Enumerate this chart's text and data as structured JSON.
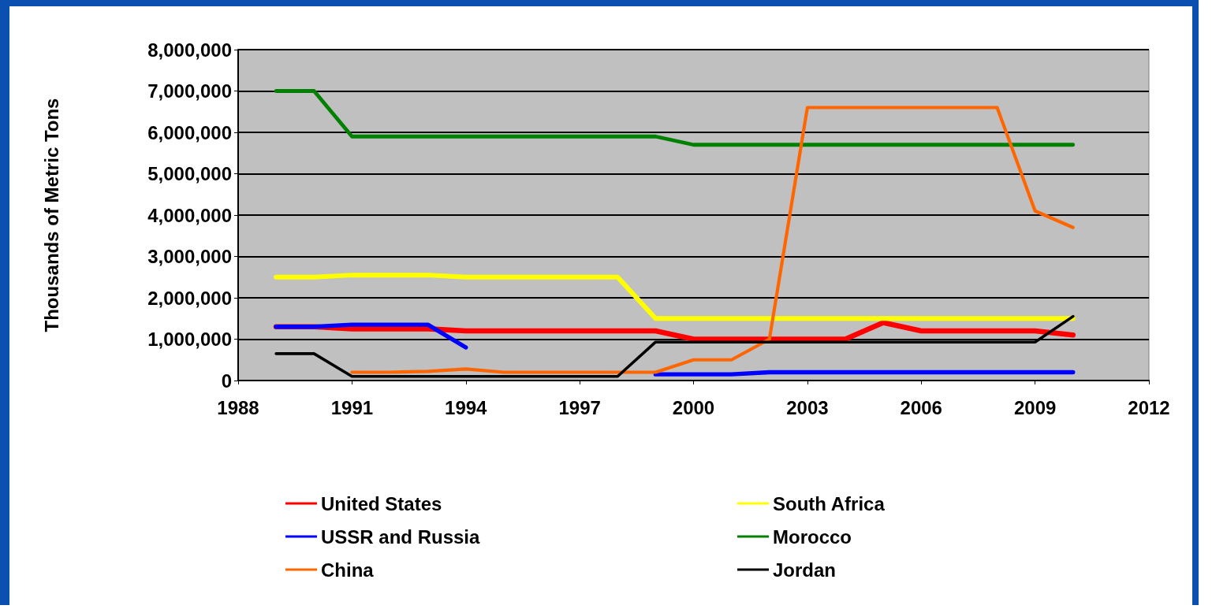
{
  "chart_data": {
    "type": "line",
    "ylabel": "Thousands of Metric Tons",
    "x": [
      1989,
      1990,
      1991,
      1992,
      1993,
      1994,
      1995,
      1996,
      1997,
      1998,
      1999,
      2000,
      2001,
      2002,
      2003,
      2004,
      2005,
      2006,
      2007,
      2008,
      2009,
      2010
    ],
    "series": [
      {
        "name": "United States",
        "color": "#ff0000",
        "values": [
          1300000,
          1300000,
          1250000,
          1250000,
          1250000,
          1200000,
          1200000,
          1200000,
          1200000,
          1200000,
          1200000,
          1000000,
          1000000,
          1000000,
          1000000,
          1000000,
          1400000,
          1200000,
          1200000,
          1200000,
          1200000,
          1100000
        ]
      },
      {
        "name": "South Africa",
        "color": "#ffff00",
        "values": [
          2500000,
          2500000,
          2550000,
          2550000,
          2550000,
          2500000,
          2500000,
          2500000,
          2500000,
          2500000,
          1500000,
          1500000,
          1500000,
          1500000,
          1500000,
          1500000,
          1500000,
          1500000,
          1500000,
          1500000,
          1500000,
          1500000
        ]
      },
      {
        "name": "USSR and Russia",
        "color": "#0000ff",
        "values": [
          1300000,
          1300000,
          1350000,
          1350000,
          1350000,
          800000,
          null,
          null,
          null,
          null,
          150000,
          150000,
          150000,
          200000,
          200000,
          200000,
          200000,
          200000,
          200000,
          200000,
          200000,
          200000
        ]
      },
      {
        "name": "Morocco",
        "color": "#008000",
        "values": [
          7000000,
          7000000,
          5900000,
          5900000,
          5900000,
          5900000,
          5900000,
          5900000,
          5900000,
          5900000,
          5900000,
          5700000,
          5700000,
          5700000,
          5700000,
          5700000,
          5700000,
          5700000,
          5700000,
          5700000,
          5700000,
          5700000
        ]
      },
      {
        "name": "China",
        "color": "#ff6600",
        "values": [
          null,
          null,
          200000,
          200000,
          220000,
          280000,
          200000,
          200000,
          200000,
          200000,
          200000,
          500000,
          500000,
          1000000,
          6600000,
          6600000,
          6600000,
          6600000,
          6600000,
          6600000,
          4100000,
          3700000
        ]
      },
      {
        "name": "Jordan",
        "color": "#000000",
        "values": [
          650000,
          650000,
          100000,
          100000,
          100000,
          100000,
          100000,
          100000,
          100000,
          100000,
          930000,
          930000,
          930000,
          930000,
          930000,
          930000,
          930000,
          930000,
          930000,
          930000,
          930000,
          1550000
        ]
      }
    ],
    "xlim": [
      1988,
      2012
    ],
    "xticks": [
      1988,
      1991,
      1994,
      1997,
      2000,
      2003,
      2006,
      2009,
      2012
    ],
    "ylim": [
      0,
      8000000
    ],
    "yticks": [
      0,
      {
        "value": 1000000,
        "label": "1,000,000"
      },
      {
        "value": 2000000,
        "label": "2,000,000"
      },
      {
        "value": 3000000,
        "label": "3,000,000"
      },
      {
        "value": 4000000,
        "label": "4,000,000"
      },
      {
        "value": 5000000,
        "label": "5,000,000"
      },
      {
        "value": 6000000,
        "label": "6,000,000"
      },
      {
        "value": 7000000,
        "label": "7,000,000"
      },
      {
        "value": 8000000,
        "label": "8,000,000"
      }
    ],
    "grid": "y",
    "legend": "bottom",
    "marker": "none",
    "line_style": "solid"
  }
}
